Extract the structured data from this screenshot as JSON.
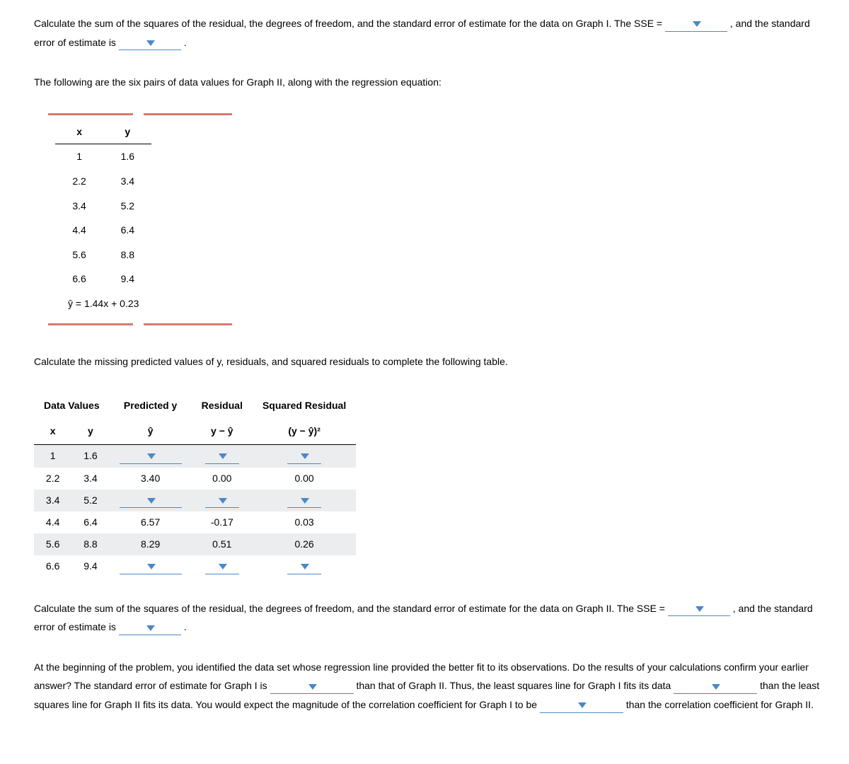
{
  "p1_part1": "Calculate the sum of the squares of the residual, the degrees of freedom, and the standard error of estimate for the data on Graph I. The SSE =",
  "p1_part2": ", and the standard error of estimate is",
  "p2": "The following are the six pairs of data values for Graph II, along with the regression equation:",
  "table1": {
    "headers": [
      "x",
      "y"
    ],
    "rows": [
      [
        "1",
        "1.6"
      ],
      [
        "2.2",
        "3.4"
      ],
      [
        "3.4",
        "5.2"
      ],
      [
        "4.4",
        "6.4"
      ],
      [
        "5.6",
        "8.8"
      ],
      [
        "6.6",
        "9.4"
      ]
    ],
    "equation": "ŷ = 1.44x + 0.23",
    "accent_color": "#d77a6d"
  },
  "p3": "Calculate the missing predicted values of y, residuals, and squared residuals to complete the following table.",
  "table2": {
    "group_headers": [
      "Data Values",
      "Predicted y",
      "Residual",
      "Squared Residual"
    ],
    "sub_headers": [
      "x",
      "y",
      "ŷ",
      "y − ŷ",
      "(y − ŷ)²"
    ],
    "rows": [
      {
        "x": "1",
        "y": "1.6",
        "pred": null,
        "res": null,
        "sq": null
      },
      {
        "x": "2.2",
        "y": "3.4",
        "pred": "3.40",
        "res": "0.00",
        "sq": "0.00"
      },
      {
        "x": "3.4",
        "y": "5.2",
        "pred": null,
        "res": null,
        "sq": null
      },
      {
        "x": "4.4",
        "y": "6.4",
        "pred": "6.57",
        "res": "-0.17",
        "sq": "0.03"
      },
      {
        "x": "5.6",
        "y": "8.8",
        "pred": "8.29",
        "res": "0.51",
        "sq": "0.26"
      },
      {
        "x": "6.6",
        "y": "9.4",
        "pred": null,
        "res": null,
        "sq": null
      }
    ],
    "shaded_bg": "#ecedee"
  },
  "p4_part1": "Calculate the sum of the squares of the residual, the degrees of freedom, and the standard error of estimate for the data on Graph II. The SSE =",
  "p4_part2": ", and the standard error of estimate is",
  "p5_1": "At the beginning of the problem, you identified the data set whose regression line provided the better fit to its observations. Do the results of your",
  "p5_2": "calculations confirm your earlier answer? The standard error of estimate for Graph I is",
  "p5_3": "than that of Graph II. Thus, the least squares line",
  "p5_4": "for Graph I fits its data",
  "p5_5": "than the least squares line for Graph II fits its data. You would expect the magnitude of the correlation coefficient",
  "p5_6": "for Graph I to be",
  "p5_7": "than the correlation coefficient for Graph II.",
  "dropdown_color": "#4a88c7"
}
